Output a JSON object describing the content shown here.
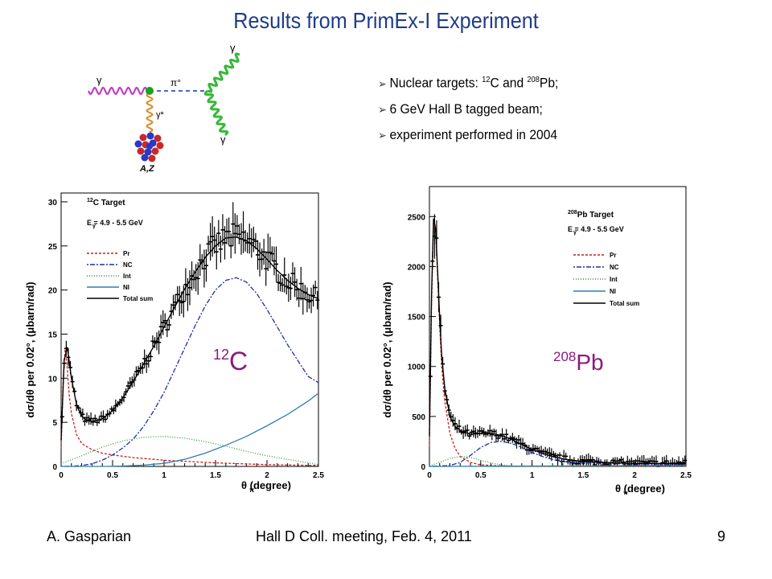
{
  "slide": {
    "title": "Results from PrimEx-I Experiment",
    "bullets": [
      {
        "prefix": "Nuclear targets: ",
        "sup1": "12",
        "mid": "C and ",
        "sup2": "208",
        "suffix": "Pb;"
      },
      {
        "text": "6 GeV Hall B tagged beam;"
      },
      {
        "text": "experiment performed in 2004"
      }
    ],
    "footer": {
      "author": "A. Gasparian",
      "meeting": "Hall D Coll. meeting, Feb. 4, 2011",
      "page": "9"
    }
  },
  "diagram": {
    "labels": {
      "gamma_in": "γ",
      "pi0": "π°",
      "gamma_star": "γ*",
      "gamma_out1": "γ",
      "gamma_out2": "γ",
      "nucleus": "A,Z"
    },
    "colors": {
      "photon_in": "#c040c0",
      "photon_virtual": "#e08a20",
      "photon_out": "#38b838",
      "pion_line": "#3050c0",
      "vertex": "#20a020"
    }
  },
  "chart_data": [
    {
      "type": "line",
      "target_label": {
        "sup": "12",
        "text": "C Target"
      },
      "energy_label": "E  = 4.9 - 5.5 GeV",
      "energy_sub": "γ",
      "big_label": {
        "sup": "12",
        "text": "C"
      },
      "xlabel": "θ  (degree)",
      "xlabel_sub": "π",
      "ylabel": "dσ/dθ per 0.02°,  (μbarn/rad)",
      "xlim": [
        0,
        2.5
      ],
      "ylim": [
        0,
        31
      ],
      "xticks": [
        "0",
        "0.5",
        "1",
        "1.5",
        "2",
        "2.5"
      ],
      "yticks": [
        "0",
        "5",
        "10",
        "15",
        "20",
        "25",
        "30"
      ],
      "legend": [
        "Pr",
        "NC",
        "Int",
        "NI",
        "Total sum"
      ],
      "series": [
        {
          "name": "Pr",
          "color": "#c0201c",
          "dash": "3,2",
          "x": [
            0,
            0.02,
            0.04,
            0.06,
            0.08,
            0.1,
            0.15,
            0.2,
            0.3,
            0.4,
            0.5,
            0.7,
            1.0,
            1.5,
            2.0,
            2.5
          ],
          "y": [
            2,
            10,
            13.5,
            11,
            8,
            6,
            3.6,
            2.6,
            1.9,
            1.5,
            1.3,
            1.0,
            0.7,
            0.4,
            0.2,
            0.1
          ]
        },
        {
          "name": "NC",
          "color": "#2030a0",
          "dash": "2,2,6,2",
          "x": [
            0,
            0.1,
            0.2,
            0.3,
            0.4,
            0.5,
            0.6,
            0.7,
            0.8,
            0.9,
            1.0,
            1.1,
            1.2,
            1.3,
            1.4,
            1.5,
            1.6,
            1.7,
            1.8,
            1.9,
            2.0,
            2.1,
            2.2,
            2.3,
            2.4,
            2.5
          ],
          "y": [
            0,
            0.03,
            0.1,
            0.3,
            0.7,
            1.3,
            2.1,
            3.1,
            4.5,
            6.3,
            8.4,
            10.9,
            13.4,
            15.9,
            18.2,
            20.0,
            21.1,
            21.4,
            20.9,
            19.6,
            17.8,
            15.8,
            13.8,
            12.0,
            10.2,
            9.5
          ]
        },
        {
          "name": "Int",
          "color": "#2e9a2e",
          "dash": "1,2",
          "x": [
            0,
            0.2,
            0.4,
            0.6,
            0.8,
            1.0,
            1.2,
            1.4,
            1.6,
            1.8,
            2.0,
            2.2,
            2.4,
            2.5
          ],
          "y": [
            0.3,
            1.2,
            2.2,
            2.9,
            3.3,
            3.4,
            3.2,
            2.8,
            2.3,
            1.7,
            1.2,
            0.8,
            0.4,
            0.2
          ]
        },
        {
          "name": "NI",
          "color": "#2f7fb0",
          "dash": "",
          "x": [
            0,
            0.4,
            0.6,
            0.8,
            1.0,
            1.2,
            1.4,
            1.6,
            1.8,
            2.0,
            2.2,
            2.4,
            2.5
          ],
          "y": [
            0,
            0,
            0.05,
            0.15,
            0.35,
            0.8,
            1.5,
            2.4,
            3.4,
            4.6,
            5.9,
            7.4,
            8.3
          ]
        },
        {
          "name": "Total sum",
          "color": "#000000",
          "dash": "",
          "x": [
            0,
            0.03,
            0.06,
            0.1,
            0.15,
            0.2,
            0.25,
            0.3,
            0.4,
            0.5,
            0.6,
            0.7,
            0.8,
            0.9,
            1.0,
            1.1,
            1.2,
            1.3,
            1.4,
            1.5,
            1.6,
            1.7,
            1.8,
            1.9,
            2.0,
            2.1,
            2.2,
            2.3,
            2.4,
            2.5
          ],
          "y": [
            3,
            12,
            13.5,
            10,
            7,
            5.7,
            5.2,
            5.1,
            5.4,
            6.3,
            7.8,
            9.6,
            11.6,
            13.6,
            15.8,
            18.0,
            20.1,
            22.0,
            23.7,
            25.0,
            25.9,
            26.0,
            25.6,
            24.7,
            23.5,
            22.2,
            21.1,
            20.2,
            19.5,
            19.0
          ]
        }
      ]
    },
    {
      "type": "line",
      "target_label": {
        "sup": "208",
        "text": "Pb Target"
      },
      "energy_label": "E  = 4.9 - 5.5 GeV",
      "energy_sub": "γ",
      "big_label": {
        "sup": "208",
        "text": "Pb"
      },
      "xlabel": "θ  (degree)",
      "xlabel_sub": "π",
      "ylabel": "dσ/dθ per 0.02°,  (μbarn/rad)",
      "xlim": [
        0,
        2.5
      ],
      "ylim": [
        0,
        2800
      ],
      "xticks": [
        "0",
        "0.5",
        "1",
        "1.5",
        "2",
        "2.5"
      ],
      "yticks": [
        "0",
        "500",
        "1000",
        "1500",
        "2000",
        "2500"
      ],
      "legend": [
        "Pr",
        "NC",
        "Int",
        "NI",
        "Total sum"
      ],
      "series": [
        {
          "name": "Pr",
          "color": "#c0201c",
          "dash": "3,2",
          "x": [
            0,
            0.02,
            0.04,
            0.06,
            0.08,
            0.1,
            0.12,
            0.15,
            0.2,
            0.25,
            0.3,
            0.4,
            0.5,
            0.7,
            1.0,
            1.5,
            2.0,
            2.5
          ],
          "y": [
            200,
            1600,
            2450,
            2350,
            1900,
            1400,
            1000,
            650,
            330,
            180,
            100,
            40,
            15,
            5,
            2,
            0,
            0,
            0
          ]
        },
        {
          "name": "NC",
          "color": "#2030a0",
          "dash": "2,2,6,2",
          "x": [
            0,
            0.2,
            0.3,
            0.4,
            0.5,
            0.6,
            0.7,
            0.8,
            0.9,
            1.0,
            1.1,
            1.2,
            1.3,
            1.4,
            1.5,
            1.7,
            2.0,
            2.5
          ],
          "y": [
            0,
            10,
            40,
            110,
            190,
            240,
            250,
            230,
            190,
            140,
            100,
            70,
            50,
            40,
            35,
            30,
            25,
            20
          ]
        },
        {
          "name": "Int",
          "color": "#2e9a2e",
          "dash": "1,2",
          "x": [
            0,
            0.1,
            0.2,
            0.3,
            0.4,
            0.5,
            0.6,
            0.7,
            0.8,
            1.0,
            1.5,
            2.5
          ],
          "y": [
            5,
            40,
            80,
            100,
            90,
            60,
            35,
            15,
            5,
            0,
            0,
            0
          ]
        },
        {
          "name": "NI",
          "color": "#2f7fb0",
          "dash": "",
          "x": [
            0,
            0.5,
            1.0,
            1.5,
            2.0,
            2.5
          ],
          "y": [
            0,
            2,
            4,
            6,
            8,
            10
          ]
        },
        {
          "name": "Total sum",
          "color": "#000000",
          "dash": "",
          "x": [
            0,
            0.02,
            0.04,
            0.06,
            0.08,
            0.1,
            0.12,
            0.15,
            0.2,
            0.25,
            0.3,
            0.4,
            0.5,
            0.6,
            0.7,
            0.8,
            0.9,
            1.0,
            1.1,
            1.2,
            1.3,
            1.4,
            1.5,
            1.7,
            2.0,
            2.5
          ],
          "y": [
            300,
            1700,
            2480,
            2380,
            1950,
            1480,
            1100,
            780,
            500,
            400,
            360,
            320,
            330,
            330,
            310,
            270,
            220,
            170,
            130,
            100,
            75,
            60,
            50,
            40,
            30,
            30
          ]
        }
      ]
    }
  ]
}
